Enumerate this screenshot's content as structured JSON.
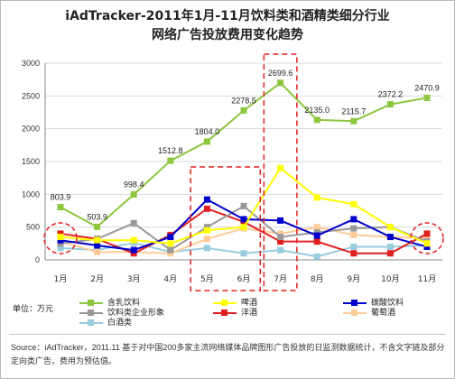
{
  "chart_data": {
    "type": "line",
    "title_line1": "iAdTracker-2011年1月-11月饮料类和酒精类细分行业",
    "title_line2": "网络广告投放费用变化趋势",
    "categories": [
      "1月",
      "2月",
      "3月",
      "4月",
      "5月",
      "6月",
      "7月",
      "8月",
      "9月",
      "10月",
      "11月"
    ],
    "yticks": [
      "0",
      "500",
      "1000",
      "1500",
      "2000",
      "2500",
      "3000"
    ],
    "ylim": [
      0,
      3000
    ],
    "unit_label": "单位：万元",
    "grid": true,
    "series": [
      {
        "name": "含乳饮料",
        "color": "#8dc63f",
        "marker": "square",
        "values": [
          803.9,
          503.9,
          998.4,
          1512.8,
          1804.0,
          2278.5,
          2699.6,
          2135.0,
          2115.7,
          2372.2,
          2470.9
        ],
        "labels": [
          "803.9",
          "503.9",
          "998.4",
          "1512.8",
          "1804.0",
          "2278.5",
          "2699.6",
          "2135.0",
          "2115.7",
          "2372.2",
          "2470.9"
        ]
      },
      {
        "name": "啤酒",
        "color": "#ffff00",
        "marker": "square",
        "values": [
          350,
          300,
          300,
          250,
          450,
          500,
          1400,
          950,
          850,
          500,
          250
        ]
      },
      {
        "name": "碳酸饮料",
        "color": "#0000cc",
        "marker": "square",
        "values": [
          300,
          220,
          150,
          350,
          920,
          620,
          600,
          370,
          620,
          350,
          200
        ]
      },
      {
        "name": "饮料类企业形象",
        "color": "#999999",
        "marker": "square",
        "values": [
          250,
          320,
          560,
          150,
          500,
          820,
          350,
          420,
          480,
          500,
          280
        ]
      },
      {
        "name": "洋酒",
        "color": "#e02020",
        "marker": "square",
        "values": [
          400,
          320,
          100,
          380,
          780,
          580,
          280,
          280,
          100,
          100,
          400
        ]
      },
      {
        "name": "葡萄酒",
        "color": "#ffcc99",
        "marker": "square",
        "values": [
          280,
          120,
          120,
          100,
          320,
          480,
          400,
          500,
          380,
          350,
          330
        ]
      },
      {
        "name": "白酒类",
        "color": "#99ccdd",
        "marker": "square",
        "values": [
          180,
          150,
          260,
          120,
          180,
          100,
          150,
          50,
          200,
          200,
          220
        ]
      }
    ],
    "highlight_boxes": [
      {
        "label": "5-6月",
        "from": 4,
        "to": 5
      },
      {
        "label": "7月",
        "from": 6,
        "to": 6
      }
    ],
    "highlight_circles": [
      0,
      10
    ]
  },
  "source": "Source：iAdTracker，2011.11  基于对中国200多家主流网络媒体品牌图形广告投放的日监测数据统计，不含文字链及部分定向类广告，费用为预估值。"
}
